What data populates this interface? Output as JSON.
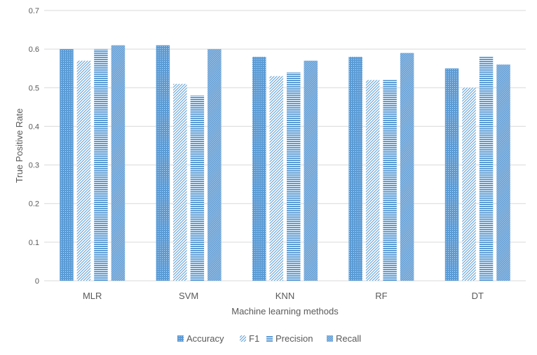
{
  "chart_data": {
    "type": "bar",
    "categories": [
      "MLR",
      "SVM",
      "KNN",
      "RF",
      "DT"
    ],
    "series": [
      {
        "name": "Accuracy",
        "values": [
          0.6,
          0.61,
          0.58,
          0.58,
          0.55
        ],
        "color": "#5b9bd5",
        "pattern": "dots"
      },
      {
        "name": "F1",
        "values": [
          0.57,
          0.51,
          0.53,
          0.52,
          0.5
        ],
        "color": "#5b9bd5",
        "pattern": "diagonal"
      },
      {
        "name": "Precision",
        "values": [
          0.6,
          0.48,
          0.54,
          0.52,
          0.58
        ],
        "color": "#5b9bd5",
        "pattern": "horizontal"
      },
      {
        "name": "Recall",
        "values": [
          0.61,
          0.6,
          0.57,
          0.59,
          0.56
        ],
        "color": "#5b9bd5",
        "pattern": "dense"
      }
    ],
    "title": "",
    "xlabel": "Machine learning methods",
    "ylabel": "True Positive Rate",
    "ylim": [
      0,
      0.7
    ],
    "yticks": [
      "0",
      "0.1",
      "0.2",
      "0.3",
      "0.4",
      "0.5",
      "0.6",
      "0.7"
    ],
    "grid": true,
    "legend_position": "bottom"
  }
}
